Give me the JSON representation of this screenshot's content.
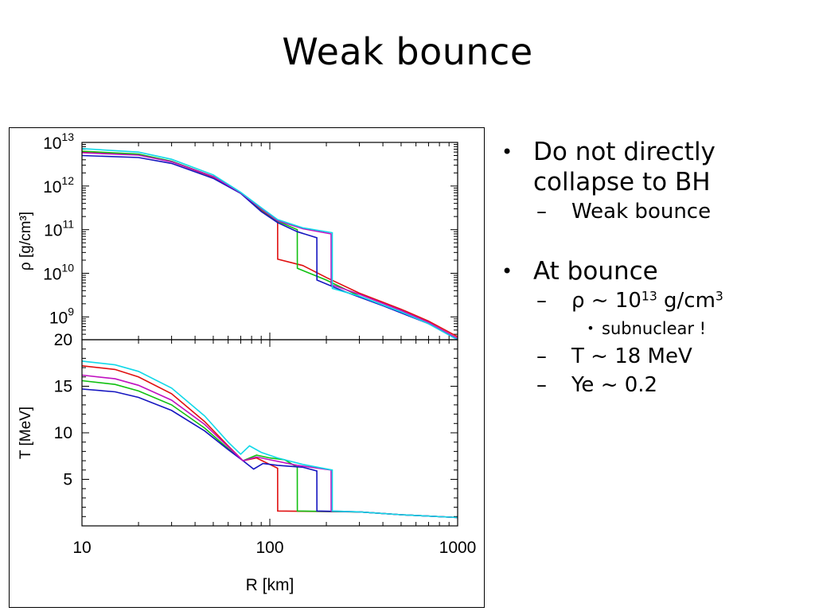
{
  "slide": {
    "title": "Weak bounce",
    "bullets": [
      {
        "text_lines": [
          "Do not directly",
          "collapse to BH"
        ],
        "sub": [
          "Weak bounce"
        ]
      },
      {
        "text_lines": [
          "At bounce"
        ]
      }
    ],
    "rho_base": "ρ ~ 10",
    "rho_exp": "13",
    "rho_unit": " g/cm",
    "rho_unit_exp": "3",
    "subnuclear": "subnuclear !",
    "temp": "T  ~  18 MeV",
    "ye": "Ye ~ 0.2",
    "bullet_glyph": "•",
    "dash_glyph": "–"
  },
  "chart_data": {
    "type": "line",
    "xscale": "log",
    "xlabel": "R [km]",
    "xlim": [
      10,
      1000
    ],
    "xticks": [
      "10",
      "100",
      "1000"
    ],
    "series_colors": [
      "#e01010",
      "#10c010",
      "#1515c0",
      "#c010c0",
      "#10d8e8"
    ],
    "panels": [
      {
        "ylabel": "ρ [g/cm³]",
        "yscale": "log",
        "ylim": [
          300000000.0,
          10000000000000.0
        ],
        "yticks": [
          {
            "base": "10",
            "exp": "13",
            "value": 10000000000000.0
          },
          {
            "base": "10",
            "exp": "12",
            "value": 1000000000000.0
          },
          {
            "base": "10",
            "exp": "11",
            "value": 100000000000.0
          },
          {
            "base": "10",
            "exp": "10",
            "value": 10000000000.0
          },
          {
            "base": "10",
            "exp": "9",
            "value": 1000000000.0
          }
        ],
        "series": [
          {
            "color": "#e01010",
            "shock_r": 110,
            "points": [
              [
                10,
                6200000000000.0
              ],
              [
                20,
                5300000000000.0
              ],
              [
                30,
                3600000000000.0
              ],
              [
                50,
                1600000000000.0
              ],
              [
                70,
                700000000000.0
              ],
              [
                90,
                280000000000.0
              ],
              [
                110,
                150000000000.0
              ],
              [
                110.1,
                21000000000.0
              ],
              [
                150,
                15000000000.0
              ],
              [
                200,
                8000000000.0
              ],
              [
                300,
                3500000000.0
              ],
              [
                500,
                1500000000.0
              ],
              [
                700,
                800000000.0
              ],
              [
                1000,
                350000000.0
              ]
            ]
          },
          {
            "color": "#10c010",
            "shock_r": 140,
            "points": [
              [
                10,
                6300000000000.0
              ],
              [
                20,
                5400000000000.0
              ],
              [
                30,
                3700000000000.0
              ],
              [
                50,
                1650000000000.0
              ],
              [
                70,
                700000000000.0
              ],
              [
                90,
                290000000000.0
              ],
              [
                110,
                155000000000.0
              ],
              [
                140,
                100000000000.0
              ],
              [
                140.1,
                13000000000.0
              ],
              [
                200,
                7000000000.0
              ],
              [
                300,
                3000000000.0
              ],
              [
                500,
                1300000000.0
              ],
              [
                700,
                700000000.0
              ],
              [
                1000,
                320000000.0
              ]
            ]
          },
          {
            "color": "#1515c0",
            "shock_r": 178,
            "points": [
              [
                10,
                5000000000000.0
              ],
              [
                20,
                4500000000000.0
              ],
              [
                30,
                3300000000000.0
              ],
              [
                50,
                1500000000000.0
              ],
              [
                70,
                680000000000.0
              ],
              [
                90,
                260000000000.0
              ],
              [
                110,
                145000000000.0
              ],
              [
                140,
                90000000000.0
              ],
              [
                178,
                65000000000.0
              ],
              [
                178.1,
                7000000000.0
              ],
              [
                250,
                3800000000.0
              ],
              [
                400,
                1800000000.0
              ],
              [
                700,
                700000000.0
              ],
              [
                1000,
                300000000.0
              ]
            ]
          },
          {
            "color": "#c010c0",
            "shock_r": 212,
            "points": [
              [
                10,
                5800000000000.0
              ],
              [
                20,
                5100000000000.0
              ],
              [
                30,
                3600000000000.0
              ],
              [
                50,
                1650000000000.0
              ],
              [
                70,
                700000000000.0
              ],
              [
                90,
                300000000000.0
              ],
              [
                110,
                160000000000.0
              ],
              [
                150,
                105000000000.0
              ],
              [
                212,
                80000000000.0
              ],
              [
                212.1,
                5500000000.0
              ],
              [
                300,
                3300000000.0
              ],
              [
                500,
                1400000000.0
              ],
              [
                700,
                750000000.0
              ],
              [
                1000,
                320000000.0
              ]
            ]
          },
          {
            "color": "#10d8e8",
            "shock_r": 215,
            "points": [
              [
                10,
                7200000000000.0
              ],
              [
                20,
                6000000000000.0
              ],
              [
                30,
                4100000000000.0
              ],
              [
                50,
                1800000000000.0
              ],
              [
                70,
                720000000000.0
              ],
              [
                90,
                320000000000.0
              ],
              [
                110,
                170000000000.0
              ],
              [
                150,
                110000000000.0
              ],
              [
                215,
                85000000000.0
              ],
              [
                215.1,
                4500000000.0
              ],
              [
                300,
                3000000000.0
              ],
              [
                500,
                1300000000.0
              ],
              [
                700,
                700000000.0
              ],
              [
                1000,
                300000000.0
              ]
            ]
          }
        ]
      },
      {
        "ylabel": "T [MeV]",
        "yscale": "linear",
        "ylim": [
          0,
          20
        ],
        "yticks": [
          {
            "label": "20",
            "value": 20
          },
          {
            "label": "15",
            "value": 15
          },
          {
            "label": "10",
            "value": 10
          },
          {
            "label": "5",
            "value": 5
          }
        ],
        "series": [
          {
            "color": "#e01010",
            "shock_r": 110,
            "points": [
              [
                10,
                17.2
              ],
              [
                15,
                16.8
              ],
              [
                20,
                16
              ],
              [
                30,
                14.2
              ],
              [
                45,
                11.2
              ],
              [
                60,
                8.6
              ],
              [
                72,
                7.0
              ],
              [
                85,
                7.3
              ],
              [
                100,
                6.6
              ],
              [
                110,
                6.2
              ],
              [
                110.1,
                1.6
              ],
              [
                300,
                1.5
              ],
              [
                500,
                1.2
              ],
              [
                1000,
                0.9
              ]
            ]
          },
          {
            "color": "#10c010",
            "shock_r": 140,
            "points": [
              [
                10,
                15.6
              ],
              [
                15,
                15.2
              ],
              [
                20,
                14.5
              ],
              [
                30,
                13
              ],
              [
                45,
                10.5
              ],
              [
                60,
                8.3
              ],
              [
                72,
                7.0
              ],
              [
                85,
                7.6
              ],
              [
                100,
                7.3
              ],
              [
                120,
                7.1
              ],
              [
                140,
                6.3
              ],
              [
                140.1,
                1.6
              ],
              [
                300,
                1.5
              ],
              [
                500,
                1.2
              ],
              [
                1000,
                0.9
              ]
            ]
          },
          {
            "color": "#1515c0",
            "shock_r": 178,
            "points": [
              [
                10,
                14.7
              ],
              [
                15,
                14.4
              ],
              [
                20,
                13.8
              ],
              [
                30,
                12.4
              ],
              [
                45,
                10.2
              ],
              [
                60,
                8.2
              ],
              [
                72,
                7.0
              ],
              [
                82,
                6.1
              ],
              [
                92,
                6.7
              ],
              [
                110,
                6.5
              ],
              [
                150,
                6.3
              ],
              [
                178,
                5.9
              ],
              [
                178.1,
                1.6
              ],
              [
                300,
                1.5
              ],
              [
                500,
                1.2
              ],
              [
                1000,
                0.9
              ]
            ]
          },
          {
            "color": "#c010c0",
            "shock_r": 212,
            "points": [
              [
                10,
                16.2
              ],
              [
                15,
                15.8
              ],
              [
                20,
                15.1
              ],
              [
                30,
                13.5
              ],
              [
                45,
                10.9
              ],
              [
                60,
                8.5
              ],
              [
                72,
                7.0
              ],
              [
                85,
                7.4
              ],
              [
                100,
                7.1
              ],
              [
                140,
                6.5
              ],
              [
                212,
                6.0
              ],
              [
                212.1,
                1.6
              ],
              [
                300,
                1.5
              ],
              [
                500,
                1.2
              ],
              [
                1000,
                0.9
              ]
            ]
          },
          {
            "color": "#10d8e8",
            "shock_r": 215,
            "points": [
              [
                10,
                17.7
              ],
              [
                15,
                17.3
              ],
              [
                20,
                16.6
              ],
              [
                30,
                14.8
              ],
              [
                45,
                11.8
              ],
              [
                60,
                9.0
              ],
              [
                70,
                7.7
              ],
              [
                78,
                8.6
              ],
              [
                90,
                7.9
              ],
              [
                110,
                7.3
              ],
              [
                150,
                6.6
              ],
              [
                215,
                6.0
              ],
              [
                215.1,
                1.6
              ],
              [
                300,
                1.5
              ],
              [
                500,
                1.2
              ],
              [
                1000,
                0.9
              ]
            ]
          }
        ]
      }
    ]
  }
}
